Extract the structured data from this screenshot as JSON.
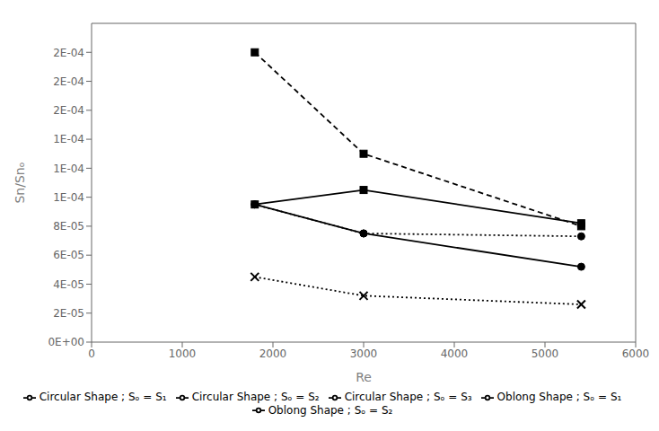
{
  "chart_data": {
    "type": "line",
    "x": [
      1800,
      3000,
      5400
    ],
    "series": [
      {
        "name": "Circular Shape ; Sₒ = S₁",
        "color": "#000000",
        "marker": "square",
        "line_style": "dashed",
        "values": [
          0.0002,
          0.00013,
          8e-05
        ]
      },
      {
        "name": "Circular Shape ; Sₒ = S₂",
        "color": "#000000",
        "marker": "circle",
        "line_style": "dotted",
        "values": [
          9.5e-05,
          7.5e-05,
          7.3e-05
        ]
      },
      {
        "name": "Circular Shape ; Sₒ = S₃",
        "color": "#000000",
        "marker": "cross",
        "line_style": "dotted",
        "values": [
          4.5e-05,
          3.2e-05,
          2.6e-05
        ]
      },
      {
        "name": "Oblong Shape ; Sₒ = S₁",
        "color": "#000000",
        "marker": "square",
        "line_style": "solid",
        "values": [
          9.5e-05,
          0.000105,
          8.2e-05
        ]
      },
      {
        "name": "Oblong Shape ; Sₒ = S₂",
        "color": "#000000",
        "marker": "circle",
        "line_style": "solid",
        "values": [
          9.5e-05,
          7.5e-05,
          5.2e-05
        ]
      }
    ],
    "xlabel": "Re",
    "ylabel": "Sn/Snₒ",
    "xlim": [
      0,
      6000
    ],
    "xticks": [
      0,
      1000,
      2000,
      3000,
      4000,
      5000,
      6000
    ],
    "ylim": [
      0.0,
      0.00022
    ],
    "yticks": [
      {
        "value": 0,
        "label": "0E+00"
      },
      {
        "value": 2e-05,
        "label": "2E-05"
      },
      {
        "value": 4e-05,
        "label": "4E-05"
      },
      {
        "value": 6e-05,
        "label": "6E-05"
      },
      {
        "value": 8e-05,
        "label": "8E-05"
      },
      {
        "value": 0.0001,
        "label": "1E-04"
      },
      {
        "value": 0.00012,
        "label": "1E-04"
      },
      {
        "value": 0.00014,
        "label": "1E-04"
      },
      {
        "value": 0.00016,
        "label": "2E-04"
      },
      {
        "value": 0.00018,
        "label": "2E-04"
      },
      {
        "value": 0.0002,
        "label": "2E-04"
      }
    ],
    "grid": false,
    "legend": "bottom"
  }
}
